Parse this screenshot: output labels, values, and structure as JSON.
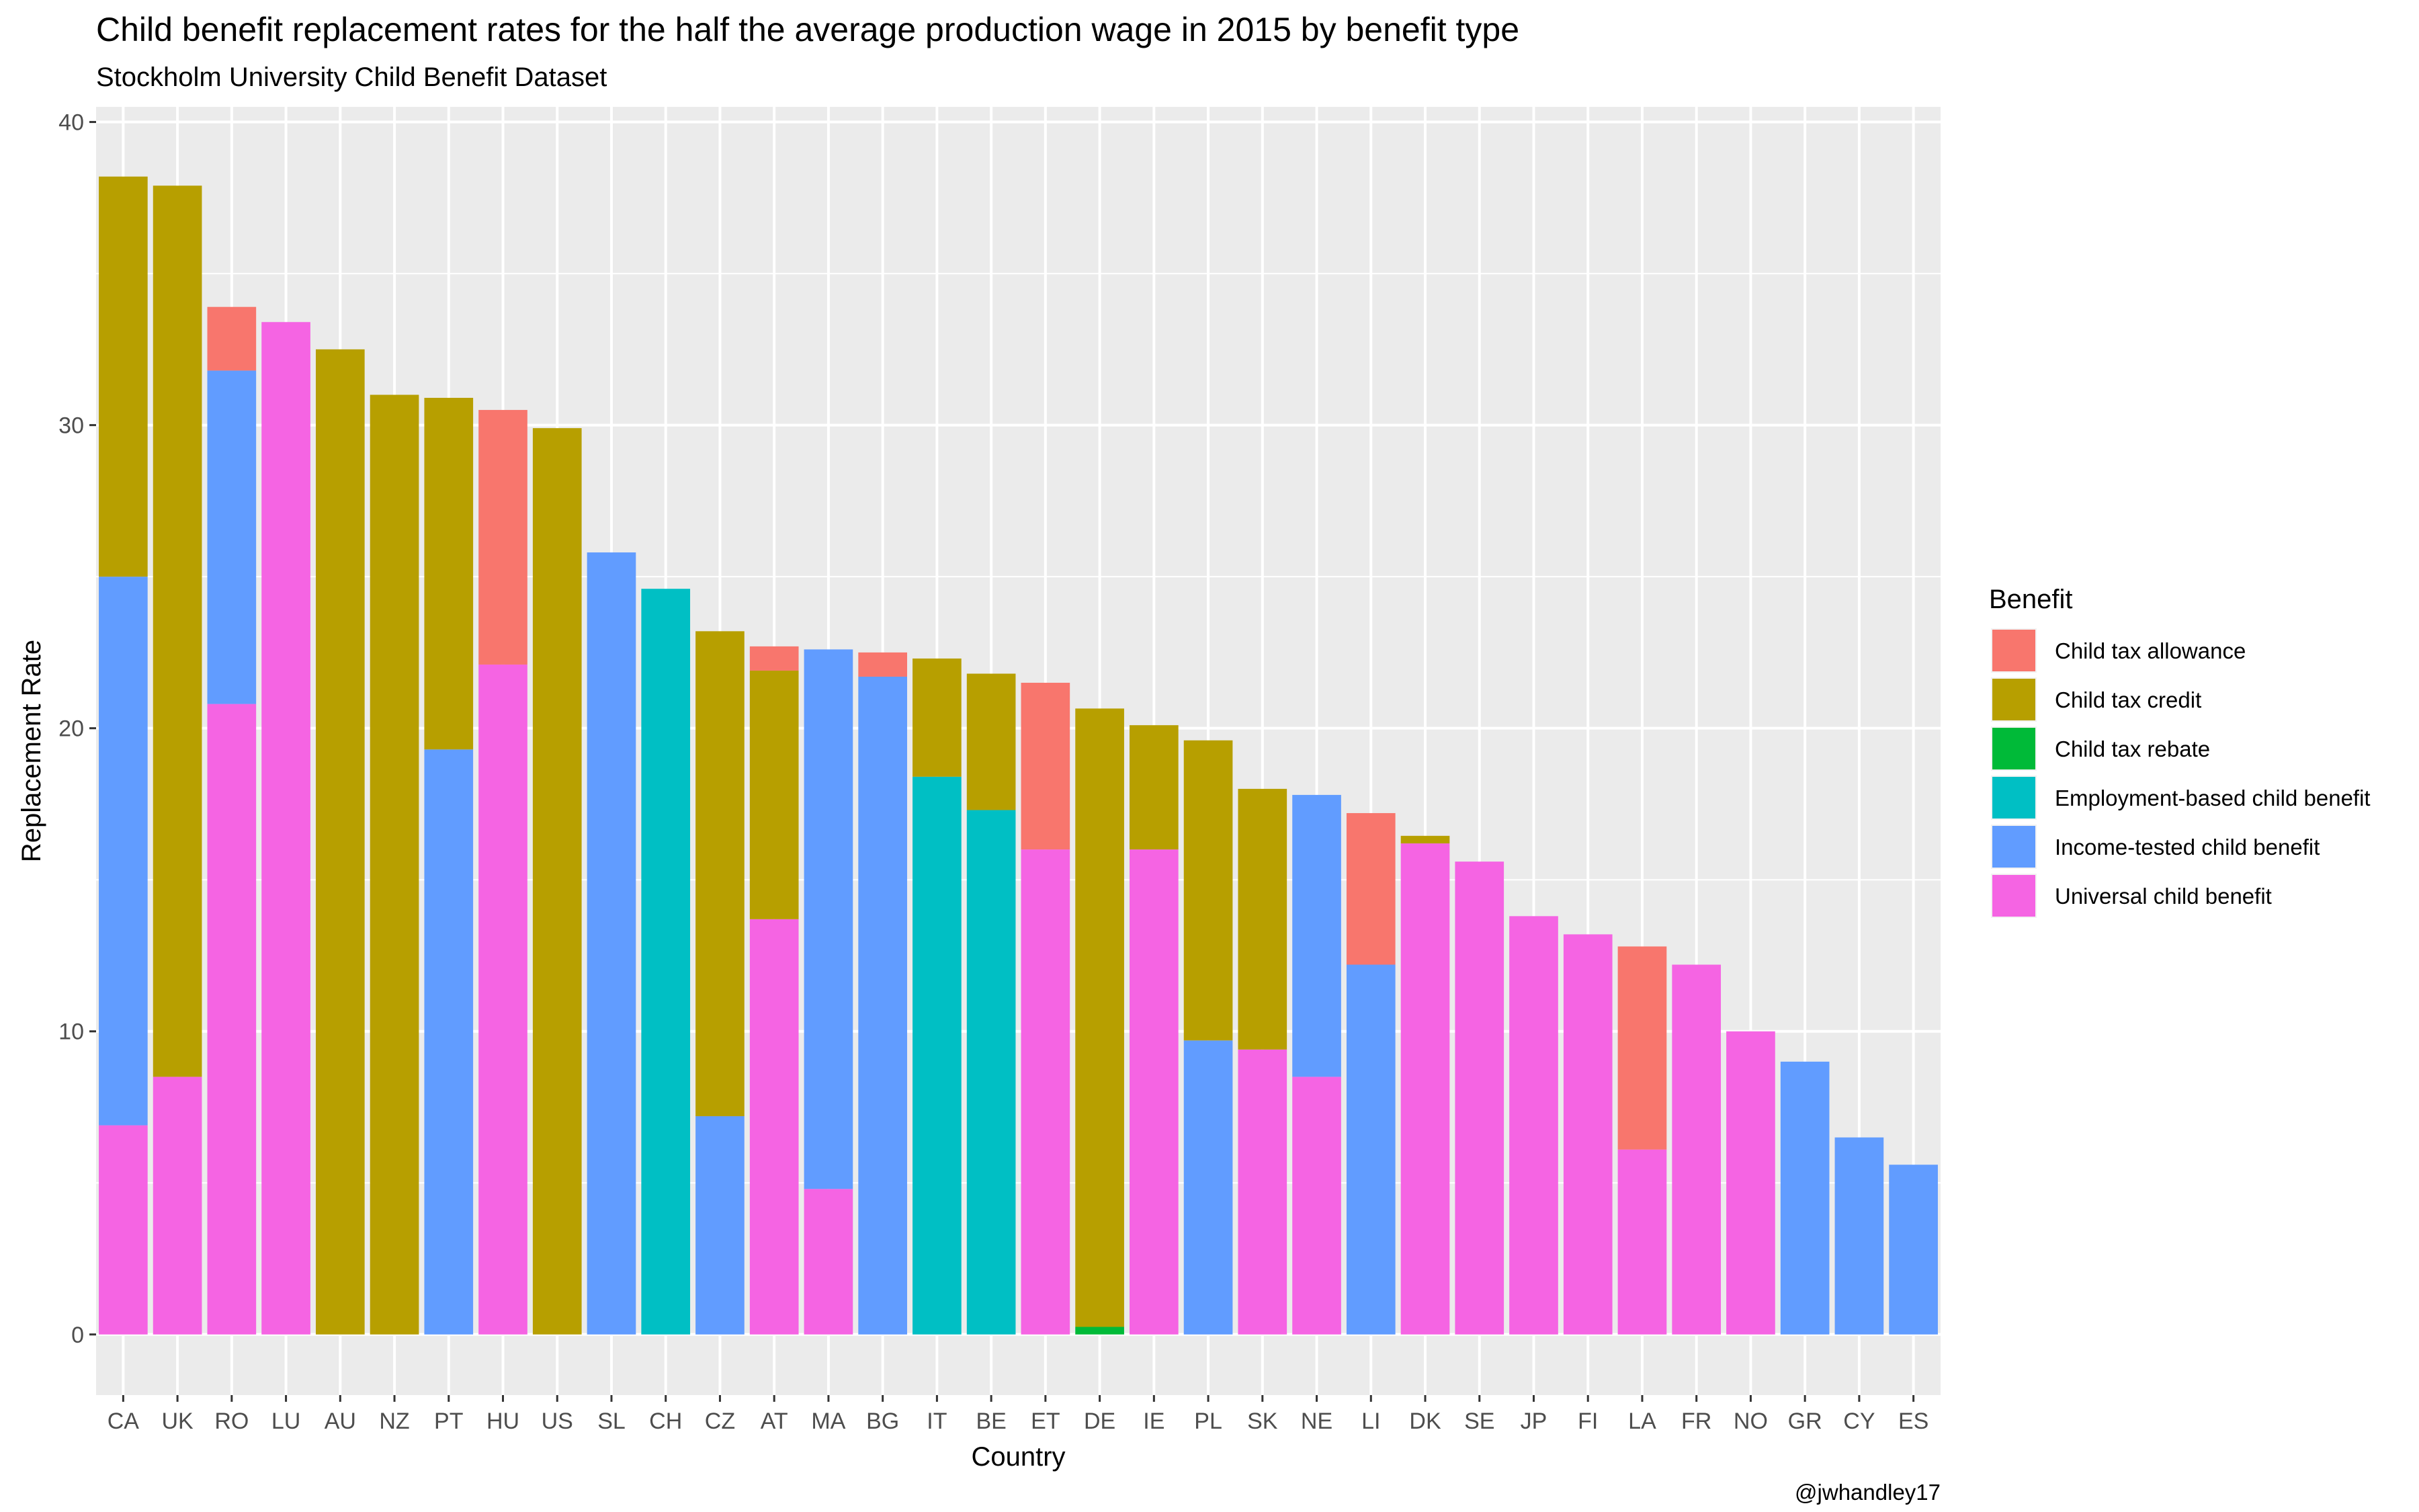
{
  "chart_data": {
    "type": "bar",
    "stacked": true,
    "title": "Child benefit replacement rates for the half the average production wage in 2015 by benefit type",
    "subtitle": "Stockholm University Child Benefit Dataset",
    "xlabel": "Country",
    "ylabel": "Replacement Rate",
    "caption": "@jwhandley17",
    "ylim": [
      -2,
      40.5
    ],
    "yticks": [
      0,
      10,
      20,
      30,
      40
    ],
    "grid": true,
    "legend": {
      "title": "Benefit",
      "position": "right"
    },
    "categories": [
      "CA",
      "UK",
      "RO",
      "LU",
      "AU",
      "NZ",
      "PT",
      "HU",
      "US",
      "SL",
      "CH",
      "CZ",
      "AT",
      "MA",
      "BG",
      "IT",
      "BE",
      "ET",
      "DE",
      "IE",
      "PL",
      "SK",
      "NE",
      "LI",
      "DK",
      "SE",
      "JP",
      "FI",
      "LA",
      "FR",
      "NO",
      "GR",
      "CY",
      "ES"
    ],
    "series": [
      {
        "name": "Universal child benefit",
        "color": "#F564E3",
        "values": [
          6.9,
          8.5,
          20.8,
          33.4,
          0,
          0,
          0,
          22.1,
          0,
          0,
          0,
          0,
          13.7,
          4.8,
          0,
          0,
          0,
          16.0,
          0,
          16.0,
          0,
          9.4,
          8.5,
          0,
          16.2,
          15.6,
          13.8,
          13.2,
          6.1,
          12.2,
          10.0,
          0,
          0,
          0
        ]
      },
      {
        "name": "Income-tested child benefit",
        "color": "#619CFF",
        "values": [
          18.1,
          0,
          11.0,
          0,
          0,
          0,
          19.3,
          0,
          0,
          25.8,
          0,
          7.2,
          0,
          17.8,
          21.7,
          0,
          0,
          0,
          0,
          0,
          9.7,
          0,
          9.3,
          12.2,
          0,
          0,
          0,
          0,
          0,
          0,
          0,
          9.0,
          6.5,
          5.6
        ]
      },
      {
        "name": "Employment-based child benefit",
        "color": "#00BFC4",
        "values": [
          0,
          0,
          0,
          0,
          0,
          0,
          0,
          0,
          0,
          0,
          24.6,
          0,
          0,
          0,
          0,
          18.4,
          17.3,
          0,
          0,
          0,
          0,
          0,
          0,
          0,
          0,
          0,
          0,
          0,
          0,
          0,
          0,
          0,
          0,
          0
        ]
      },
      {
        "name": "Child tax rebate",
        "color": "#00BA38",
        "values": [
          0,
          0,
          0,
          0,
          0,
          0,
          0,
          0,
          0,
          0,
          0,
          0,
          0,
          0,
          0,
          0,
          0,
          0,
          0.25,
          0,
          0,
          0,
          0,
          0,
          0,
          0,
          0,
          0,
          0,
          0,
          0,
          0,
          0,
          0
        ]
      },
      {
        "name": "Child tax credit",
        "color": "#B79F00",
        "values": [
          13.2,
          29.4,
          0,
          0,
          32.5,
          31.0,
          11.6,
          0,
          29.9,
          0,
          0,
          16.0,
          8.2,
          0,
          0,
          3.9,
          4.5,
          0,
          20.4,
          4.1,
          9.9,
          8.6,
          0,
          0,
          0.25,
          0,
          0,
          0,
          0,
          0,
          0,
          0,
          0,
          0
        ]
      },
      {
        "name": "Child tax allowance",
        "color": "#F8766D",
        "values": [
          0,
          0,
          2.1,
          0,
          0,
          0,
          0,
          8.4,
          0,
          0,
          0,
          0,
          0.8,
          0,
          0.8,
          0,
          0,
          5.5,
          0,
          0,
          0,
          0,
          0,
          5.0,
          0,
          0,
          0,
          0,
          6.7,
          0,
          0,
          0,
          0,
          0
        ]
      }
    ],
    "legend_order": [
      "Child tax allowance",
      "Child tax credit",
      "Child tax rebate",
      "Employment-based child benefit",
      "Income-tested child benefit",
      "Universal child benefit"
    ],
    "panel_background": "#EBEBEB",
    "gridline_color": "#FFFFFF"
  }
}
